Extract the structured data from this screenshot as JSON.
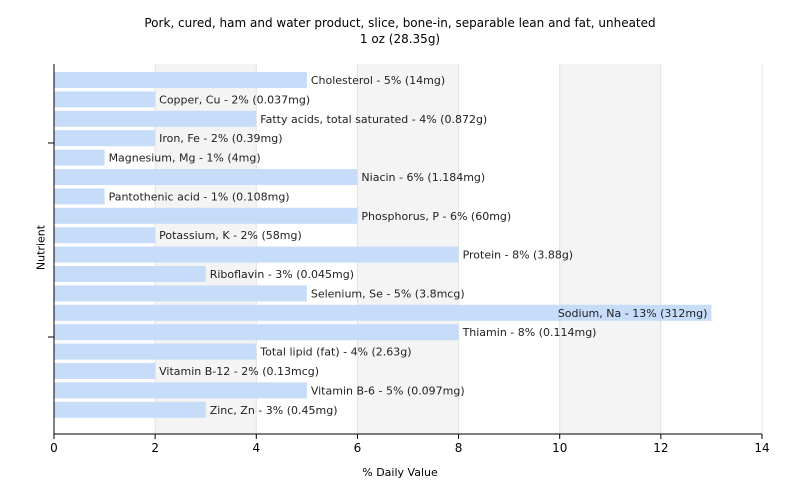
{
  "chart_data": {
    "type": "bar",
    "orientation": "horizontal",
    "title": "Pork, cured, ham and water product, slice, bone-in, separable lean and fat, unheated",
    "subtitle": "1 oz (28.35g)",
    "xlabel": "% Daily Value",
    "ylabel": "Nutrient",
    "xlim": [
      0,
      14
    ],
    "xticks": [
      0,
      2,
      4,
      6,
      8,
      10,
      12,
      14
    ],
    "grid": true,
    "bar_color": "#c6dcf8",
    "bars": [
      {
        "label": "Cholesterol - 5% (14mg)",
        "value": 5
      },
      {
        "label": "Copper, Cu - 2% (0.037mg)",
        "value": 2
      },
      {
        "label": "Fatty acids, total saturated - 4% (0.872g)",
        "value": 4
      },
      {
        "label": "Iron, Fe - 2% (0.39mg)",
        "value": 2
      },
      {
        "label": "Magnesium, Mg - 1% (4mg)",
        "value": 1
      },
      {
        "label": "Niacin - 6% (1.184mg)",
        "value": 6
      },
      {
        "label": "Pantothenic acid - 1% (0.108mg)",
        "value": 1
      },
      {
        "label": "Phosphorus, P - 6% (60mg)",
        "value": 6
      },
      {
        "label": "Potassium, K - 2% (58mg)",
        "value": 2
      },
      {
        "label": "Protein - 8% (3.88g)",
        "value": 8
      },
      {
        "label": "Riboflavin - 3% (0.045mg)",
        "value": 3
      },
      {
        "label": "Selenium, Se - 5% (3.8mcg)",
        "value": 5
      },
      {
        "label": "Sodium, Na - 13% (312mg)",
        "value": 13
      },
      {
        "label": "Thiamin - 8% (0.114mg)",
        "value": 8
      },
      {
        "label": "Total lipid (fat) - 4% (2.63g)",
        "value": 4
      },
      {
        "label": "Vitamin B-12 - 2% (0.13mcg)",
        "value": 2
      },
      {
        "label": "Vitamin B-6 - 5% (0.097mg)",
        "value": 5
      },
      {
        "label": "Zinc, Zn - 3% (0.45mg)",
        "value": 3
      }
    ]
  }
}
